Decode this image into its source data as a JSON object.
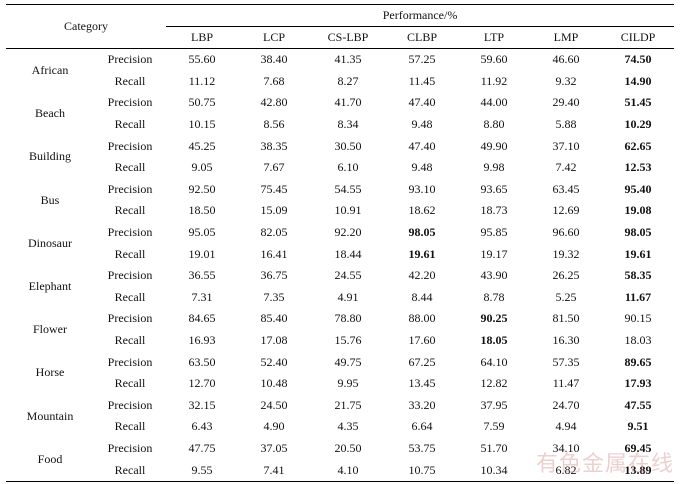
{
  "header": {
    "category_label": "Category",
    "performance_label": "Performance/%",
    "methods": [
      "LBP",
      "LCP",
      "CS-LBP",
      "CLBP",
      "LTP",
      "LMP",
      "CILDP"
    ]
  },
  "rows": [
    {
      "category": "African",
      "metrics": [
        {
          "name": "Precision",
          "values": [
            "55.60",
            "38.40",
            "41.35",
            "57.25",
            "59.60",
            "46.60",
            "74.50"
          ],
          "bold": [
            6
          ]
        },
        {
          "name": "Recall",
          "values": [
            "11.12",
            "7.68",
            "8.27",
            "11.45",
            "11.92",
            "9.32",
            "14.90"
          ],
          "bold": [
            6
          ]
        }
      ]
    },
    {
      "category": "Beach",
      "metrics": [
        {
          "name": "Precision",
          "values": [
            "50.75",
            "42.80",
            "41.70",
            "47.40",
            "44.00",
            "29.40",
            "51.45"
          ],
          "bold": [
            6
          ]
        },
        {
          "name": "Recall",
          "values": [
            "10.15",
            "8.56",
            "8.34",
            "9.48",
            "8.80",
            "5.88",
            "10.29"
          ],
          "bold": [
            6
          ]
        }
      ]
    },
    {
      "category": "Building",
      "metrics": [
        {
          "name": "Precision",
          "values": [
            "45.25",
            "38.35",
            "30.50",
            "47.40",
            "49.90",
            "37.10",
            "62.65"
          ],
          "bold": [
            6
          ]
        },
        {
          "name": "Recall",
          "values": [
            "9.05",
            "7.67",
            "6.10",
            "9.48",
            "9.98",
            "7.42",
            "12.53"
          ],
          "bold": [
            6
          ]
        }
      ]
    },
    {
      "category": "Bus",
      "metrics": [
        {
          "name": "Precision",
          "values": [
            "92.50",
            "75.45",
            "54.55",
            "93.10",
            "93.65",
            "63.45",
            "95.40"
          ],
          "bold": [
            6
          ]
        },
        {
          "name": "Recall",
          "values": [
            "18.50",
            "15.09",
            "10.91",
            "18.62",
            "18.73",
            "12.69",
            "19.08"
          ],
          "bold": [
            6
          ]
        }
      ]
    },
    {
      "category": "Dinosaur",
      "metrics": [
        {
          "name": "Precision",
          "values": [
            "95.05",
            "82.05",
            "92.20",
            "98.05",
            "95.85",
            "96.60",
            "98.05"
          ],
          "bold": [
            3,
            6
          ]
        },
        {
          "name": "Recall",
          "values": [
            "19.01",
            "16.41",
            "18.44",
            "19.61",
            "19.17",
            "19.32",
            "19.61"
          ],
          "bold": [
            3,
            6
          ]
        }
      ]
    },
    {
      "category": "Elephant",
      "metrics": [
        {
          "name": "Precision",
          "values": [
            "36.55",
            "36.75",
            "24.55",
            "42.20",
            "43.90",
            "26.25",
            "58.35"
          ],
          "bold": [
            6
          ]
        },
        {
          "name": "Recall",
          "values": [
            "7.31",
            "7.35",
            "4.91",
            "8.44",
            "8.78",
            "5.25",
            "11.67"
          ],
          "bold": [
            6
          ]
        }
      ]
    },
    {
      "category": "Flower",
      "metrics": [
        {
          "name": "Precision",
          "values": [
            "84.65",
            "85.40",
            "78.80",
            "88.00",
            "90.25",
            "81.50",
            "90.15"
          ],
          "bold": [
            4
          ]
        },
        {
          "name": "Recall",
          "values": [
            "16.93",
            "17.08",
            "15.76",
            "17.60",
            "18.05",
            "16.30",
            "18.03"
          ],
          "bold": [
            4
          ]
        }
      ]
    },
    {
      "category": "Horse",
      "metrics": [
        {
          "name": "Precision",
          "values": [
            "63.50",
            "52.40",
            "49.75",
            "67.25",
            "64.10",
            "57.35",
            "89.65"
          ],
          "bold": [
            6
          ]
        },
        {
          "name": "Recall",
          "values": [
            "12.70",
            "10.48",
            "9.95",
            "13.45",
            "12.82",
            "11.47",
            "17.93"
          ],
          "bold": [
            6
          ]
        }
      ]
    },
    {
      "category": "Mountain",
      "metrics": [
        {
          "name": "Precision",
          "values": [
            "32.15",
            "24.50",
            "21.75",
            "33.20",
            "37.95",
            "24.70",
            "47.55"
          ],
          "bold": [
            6
          ]
        },
        {
          "name": "Recall",
          "values": [
            "6.43",
            "4.90",
            "4.35",
            "6.64",
            "7.59",
            "4.94",
            "9.51"
          ],
          "bold": [
            6
          ]
        }
      ]
    },
    {
      "category": "Food",
      "metrics": [
        {
          "name": "Precision",
          "values": [
            "47.75",
            "37.05",
            "20.50",
            "53.75",
            "51.70",
            "34.10",
            "69.45"
          ],
          "bold": [
            6
          ]
        },
        {
          "name": "Recall",
          "values": [
            "9.55",
            "7.41",
            "4.10",
            "10.75",
            "10.34",
            "6.82",
            "13.89"
          ],
          "bold": [
            6
          ]
        }
      ]
    }
  ],
  "watermark": "有色金属在线"
}
